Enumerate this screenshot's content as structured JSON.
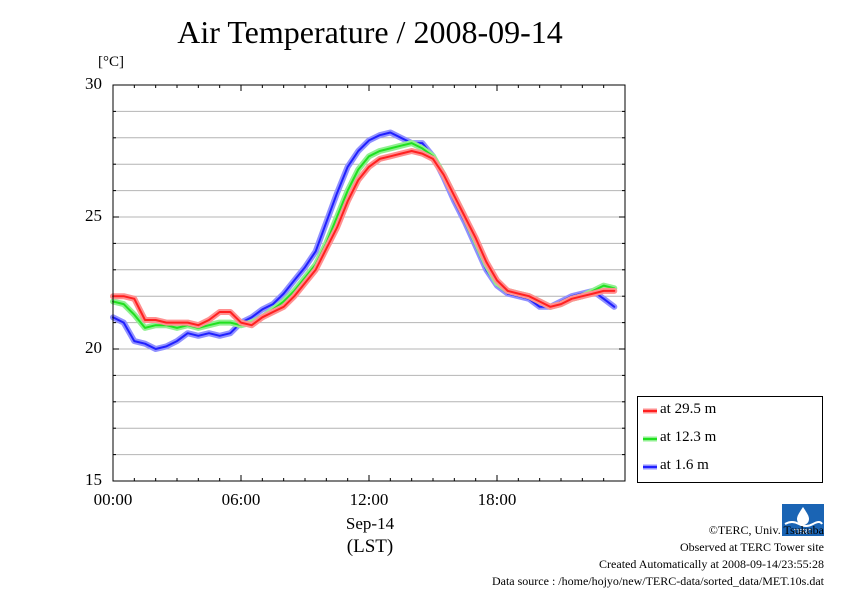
{
  "chart_data": {
    "type": "line",
    "title": "Air Temperature / 2008-09-14",
    "ylabel": "[°C]",
    "xlabel_date": "Sep-14",
    "xlabel_tz": "(LST)",
    "ylim": [
      15,
      30
    ],
    "xlim": [
      0,
      24
    ],
    "yticks": [
      "30",
      "25",
      "20",
      "15"
    ],
    "xticks": [
      "00:00",
      "06:00",
      "12:00",
      "18:00"
    ],
    "grid": true,
    "legend_position": "bottom-right-outside",
    "series": [
      {
        "name": "at 29.5 m",
        "color": "#ff2020",
        "halo": "#ff9090",
        "x": [
          0,
          0.5,
          1,
          1.5,
          2,
          2.5,
          3,
          3.5,
          4,
          4.5,
          5,
          5.5,
          6,
          6.5,
          7,
          7.5,
          8,
          8.5,
          9,
          9.5,
          10,
          10.5,
          11,
          11.5,
          12,
          12.5,
          13,
          13.5,
          14,
          14.5,
          15,
          15.5,
          16,
          16.5,
          17,
          17.5,
          18,
          18.5,
          19,
          19.5,
          20,
          20.5,
          21,
          21.5,
          22,
          22.5,
          23,
          23.5
        ],
        "values": [
          22.0,
          22.0,
          21.9,
          21.1,
          21.1,
          21.0,
          21.0,
          21.0,
          20.9,
          21.1,
          21.4,
          21.4,
          21.0,
          20.9,
          21.2,
          21.4,
          21.6,
          22.0,
          22.5,
          23.0,
          23.8,
          24.6,
          25.6,
          26.4,
          26.9,
          27.2,
          27.3,
          27.4,
          27.5,
          27.4,
          27.2,
          26.6,
          25.8,
          25.0,
          24.2,
          23.3,
          22.6,
          22.2,
          22.1,
          22.0,
          21.8,
          21.6,
          21.7,
          21.9,
          22.0,
          22.1,
          22.2,
          22.2
        ]
      },
      {
        "name": "at 12.3 m",
        "color": "#20e020",
        "halo": "#90f090",
        "x": [
          0,
          0.5,
          1,
          1.5,
          2,
          2.5,
          3,
          3.5,
          4,
          4.5,
          5,
          5.5,
          6,
          6.5,
          7,
          7.5,
          8,
          8.5,
          9,
          9.5,
          10,
          10.5,
          11,
          11.5,
          12,
          12.5,
          13,
          13.5,
          14,
          14.5,
          15,
          15.5,
          16,
          16.5,
          17,
          17.5,
          18,
          18.5,
          19,
          19.5,
          20,
          20.5,
          21,
          21.5,
          22,
          22.5,
          23,
          23.5
        ],
        "values": [
          21.8,
          21.7,
          21.3,
          20.8,
          20.9,
          20.9,
          20.8,
          20.9,
          20.8,
          20.9,
          21.0,
          21.0,
          20.9,
          21.0,
          21.2,
          21.5,
          21.8,
          22.2,
          22.7,
          23.2,
          24.0,
          25.0,
          26.0,
          26.8,
          27.3,
          27.5,
          27.6,
          27.7,
          27.8,
          27.6,
          27.3,
          26.6,
          25.8,
          25.0,
          24.1,
          23.2,
          22.5,
          22.2,
          22.1,
          22.0,
          21.8,
          21.6,
          21.7,
          21.9,
          22.0,
          22.2,
          22.4,
          22.3
        ]
      },
      {
        "name": "at 1.6 m",
        "color": "#2020ff",
        "halo": "#9090ff",
        "x": [
          0,
          0.5,
          1,
          1.5,
          2,
          2.5,
          3,
          3.5,
          4,
          4.5,
          5,
          5.5,
          6,
          6.5,
          7,
          7.5,
          8,
          8.5,
          9,
          9.5,
          10,
          10.5,
          11,
          11.5,
          12,
          12.5,
          13,
          13.5,
          14,
          14.5,
          15,
          15.5,
          16,
          16.5,
          17,
          17.5,
          18,
          18.5,
          19,
          19.5,
          20,
          20.5,
          21,
          21.5,
          22,
          22.5,
          23,
          23.5
        ],
        "values": [
          21.2,
          21.0,
          20.3,
          20.2,
          20.0,
          20.1,
          20.3,
          20.6,
          20.5,
          20.6,
          20.5,
          20.6,
          21.0,
          21.2,
          21.5,
          21.7,
          22.1,
          22.6,
          23.1,
          23.7,
          24.8,
          25.9,
          26.9,
          27.5,
          27.9,
          28.1,
          28.2,
          28.0,
          27.8,
          27.8,
          27.3,
          26.5,
          25.6,
          24.8,
          23.9,
          23.0,
          22.4,
          22.1,
          22.0,
          21.9,
          21.6,
          21.6,
          21.8,
          22.0,
          22.1,
          22.2,
          21.9,
          21.6
        ]
      }
    ]
  },
  "footer": {
    "copyright": "©TERC, Univ. Tsukuba",
    "observed": "Observed at TERC Tower site",
    "created": "Created Automatically at 2008-09-14/23:55:28",
    "source": "Data source : /home/hojyo/new/TERC-data/sorted_data/MET.10s.dat",
    "logo_text": "TERC"
  }
}
